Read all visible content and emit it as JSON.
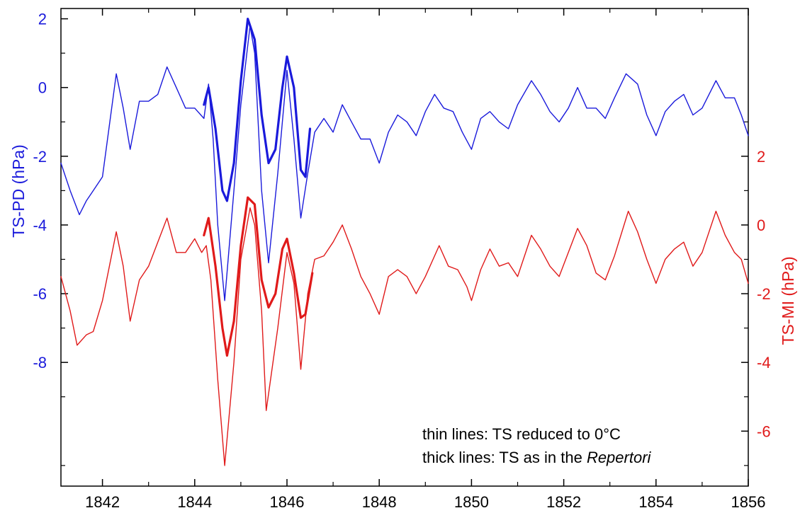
{
  "chart_data": {
    "type": "line",
    "x_axis": {
      "ticks": [
        1842,
        1844,
        1846,
        1848,
        1850,
        1852,
        1854,
        1856
      ],
      "range": [
        1841.1,
        1856
      ]
    },
    "y_left": {
      "label": "TS-PD (hPa)",
      "ticks": [
        2,
        0,
        -2,
        -4,
        -6,
        -8
      ],
      "range": [
        -11.6,
        2.3
      ],
      "color": "#1a1adb"
    },
    "y_right": {
      "label": "TS-MI (hPa)",
      "ticks": [
        2,
        0,
        -2,
        -4,
        -6
      ],
      "range": [
        -7.6,
        6.3
      ],
      "color": "#e01a1a"
    },
    "series": [
      {
        "axis": "left",
        "style": "thin",
        "color": "#1a1adb",
        "points": [
          [
            1841.1,
            -2.2
          ],
          [
            1841.3,
            -3.0
          ],
          [
            1841.5,
            -3.7
          ],
          [
            1841.65,
            -3.3
          ],
          [
            1841.8,
            -3.0
          ],
          [
            1842.0,
            -2.6
          ],
          [
            1842.1,
            -1.6
          ],
          [
            1842.3,
            0.4
          ],
          [
            1842.45,
            -0.6
          ],
          [
            1842.6,
            -1.8
          ],
          [
            1842.8,
            -0.4
          ],
          [
            1843.0,
            -0.4
          ],
          [
            1843.2,
            -0.2
          ],
          [
            1843.4,
            0.6
          ],
          [
            1843.6,
            0.0
          ],
          [
            1843.8,
            -0.6
          ],
          [
            1844.0,
            -0.6
          ],
          [
            1844.2,
            -0.9
          ],
          [
            1844.3,
            0.1
          ],
          [
            1844.4,
            -1.5
          ],
          [
            1844.5,
            -4.0
          ],
          [
            1844.65,
            -6.2
          ],
          [
            1844.85,
            -3.0
          ],
          [
            1845.0,
            -0.5
          ],
          [
            1845.2,
            1.8
          ],
          [
            1845.3,
            1.0
          ],
          [
            1845.45,
            -3.0
          ],
          [
            1845.6,
            -5.1
          ],
          [
            1845.8,
            -2.5
          ],
          [
            1846.0,
            0.5
          ],
          [
            1846.15,
            -1.5
          ],
          [
            1846.3,
            -3.8
          ],
          [
            1846.45,
            -2.5
          ],
          [
            1846.6,
            -1.3
          ],
          [
            1846.8,
            -0.9
          ],
          [
            1847.0,
            -1.3
          ],
          [
            1847.2,
            -0.5
          ],
          [
            1847.4,
            -1.0
          ],
          [
            1847.6,
            -1.5
          ],
          [
            1847.8,
            -1.5
          ],
          [
            1848.0,
            -2.2
          ],
          [
            1848.2,
            -1.3
          ],
          [
            1848.4,
            -0.8
          ],
          [
            1848.6,
            -1.0
          ],
          [
            1848.8,
            -1.4
          ],
          [
            1849.0,
            -0.7
          ],
          [
            1849.2,
            -0.2
          ],
          [
            1849.4,
            -0.6
          ],
          [
            1849.6,
            -0.7
          ],
          [
            1849.8,
            -1.3
          ],
          [
            1850.0,
            -1.8
          ],
          [
            1850.2,
            -0.9
          ],
          [
            1850.4,
            -0.7
          ],
          [
            1850.6,
            -1.0
          ],
          [
            1850.8,
            -1.2
          ],
          [
            1851.0,
            -0.5
          ],
          [
            1851.3,
            0.2
          ],
          [
            1851.5,
            -0.2
          ],
          [
            1851.7,
            -0.7
          ],
          [
            1851.9,
            -1.0
          ],
          [
            1852.1,
            -0.6
          ],
          [
            1852.3,
            0.0
          ],
          [
            1852.5,
            -0.6
          ],
          [
            1852.7,
            -0.6
          ],
          [
            1852.9,
            -0.9
          ],
          [
            1853.1,
            -0.3
          ],
          [
            1853.35,
            0.4
          ],
          [
            1853.6,
            0.1
          ],
          [
            1853.8,
            -0.8
          ],
          [
            1854.0,
            -1.4
          ],
          [
            1854.2,
            -0.7
          ],
          [
            1854.4,
            -0.4
          ],
          [
            1854.6,
            -0.2
          ],
          [
            1854.8,
            -0.8
          ],
          [
            1855.0,
            -0.6
          ],
          [
            1855.3,
            0.2
          ],
          [
            1855.5,
            -0.3
          ],
          [
            1855.7,
            -0.3
          ],
          [
            1855.85,
            -0.8
          ],
          [
            1856.0,
            -1.4
          ]
        ]
      },
      {
        "axis": "left",
        "style": "thick",
        "color": "#1a1adb",
        "points": [
          [
            1844.2,
            -0.5
          ],
          [
            1844.3,
            0.0
          ],
          [
            1844.45,
            -1.2
          ],
          [
            1844.6,
            -3.0
          ],
          [
            1844.7,
            -3.3
          ],
          [
            1844.85,
            -2.2
          ],
          [
            1845.0,
            0.2
          ],
          [
            1845.15,
            2.0
          ],
          [
            1845.3,
            1.4
          ],
          [
            1845.45,
            -0.8
          ],
          [
            1845.6,
            -2.2
          ],
          [
            1845.75,
            -1.8
          ],
          [
            1845.9,
            0.0
          ],
          [
            1846.0,
            0.9
          ],
          [
            1846.15,
            0.0
          ],
          [
            1846.3,
            -2.4
          ],
          [
            1846.4,
            -2.6
          ],
          [
            1846.5,
            -1.2
          ]
        ]
      },
      {
        "axis": "right",
        "style": "thin",
        "color": "#e01a1a",
        "points": [
          [
            1841.1,
            -1.5
          ],
          [
            1841.3,
            -2.5
          ],
          [
            1841.45,
            -3.5
          ],
          [
            1841.65,
            -3.2
          ],
          [
            1841.8,
            -3.1
          ],
          [
            1842.0,
            -2.2
          ],
          [
            1842.15,
            -1.2
          ],
          [
            1842.3,
            -0.2
          ],
          [
            1842.45,
            -1.2
          ],
          [
            1842.6,
            -2.8
          ],
          [
            1842.8,
            -1.6
          ],
          [
            1843.0,
            -1.2
          ],
          [
            1843.2,
            -0.5
          ],
          [
            1843.4,
            0.2
          ],
          [
            1843.6,
            -0.8
          ],
          [
            1843.8,
            -0.8
          ],
          [
            1844.0,
            -0.4
          ],
          [
            1844.15,
            -0.8
          ],
          [
            1844.25,
            -0.6
          ],
          [
            1844.35,
            -1.6
          ],
          [
            1844.5,
            -4.5
          ],
          [
            1844.65,
            -7.0
          ],
          [
            1844.85,
            -4.0
          ],
          [
            1845.0,
            -1.0
          ],
          [
            1845.2,
            0.5
          ],
          [
            1845.3,
            0.0
          ],
          [
            1845.45,
            -2.5
          ],
          [
            1845.55,
            -5.4
          ],
          [
            1845.8,
            -3.0
          ],
          [
            1846.0,
            -0.8
          ],
          [
            1846.15,
            -1.7
          ],
          [
            1846.3,
            -4.2
          ],
          [
            1846.45,
            -2.0
          ],
          [
            1846.6,
            -1.0
          ],
          [
            1846.8,
            -0.9
          ],
          [
            1847.0,
            -0.5
          ],
          [
            1847.2,
            0.0
          ],
          [
            1847.4,
            -0.7
          ],
          [
            1847.6,
            -1.5
          ],
          [
            1847.8,
            -2.0
          ],
          [
            1848.0,
            -2.6
          ],
          [
            1848.2,
            -1.5
          ],
          [
            1848.4,
            -1.3
          ],
          [
            1848.6,
            -1.5
          ],
          [
            1848.8,
            -2.0
          ],
          [
            1849.0,
            -1.5
          ],
          [
            1849.3,
            -0.6
          ],
          [
            1849.5,
            -1.2
          ],
          [
            1849.7,
            -1.3
          ],
          [
            1849.9,
            -1.8
          ],
          [
            1850.0,
            -2.2
          ],
          [
            1850.2,
            -1.3
          ],
          [
            1850.4,
            -0.7
          ],
          [
            1850.6,
            -1.2
          ],
          [
            1850.8,
            -1.1
          ],
          [
            1851.0,
            -1.5
          ],
          [
            1851.3,
            -0.3
          ],
          [
            1851.5,
            -0.7
          ],
          [
            1851.7,
            -1.2
          ],
          [
            1851.9,
            -1.5
          ],
          [
            1852.1,
            -0.8
          ],
          [
            1852.3,
            -0.1
          ],
          [
            1852.5,
            -0.6
          ],
          [
            1852.7,
            -1.4
          ],
          [
            1852.9,
            -1.6
          ],
          [
            1853.1,
            -0.9
          ],
          [
            1853.4,
            0.4
          ],
          [
            1853.6,
            -0.2
          ],
          [
            1853.8,
            -1.0
          ],
          [
            1854.0,
            -1.7
          ],
          [
            1854.2,
            -1.0
          ],
          [
            1854.4,
            -0.7
          ],
          [
            1854.6,
            -0.5
          ],
          [
            1854.8,
            -1.2
          ],
          [
            1855.0,
            -0.8
          ],
          [
            1855.3,
            0.4
          ],
          [
            1855.5,
            -0.3
          ],
          [
            1855.7,
            -0.8
          ],
          [
            1855.85,
            -1.0
          ],
          [
            1856.0,
            -1.7
          ]
        ]
      },
      {
        "axis": "right",
        "style": "thick",
        "color": "#e01a1a",
        "points": [
          [
            1844.2,
            -0.3
          ],
          [
            1844.3,
            0.2
          ],
          [
            1844.45,
            -1.2
          ],
          [
            1844.6,
            -3.0
          ],
          [
            1844.7,
            -3.8
          ],
          [
            1844.85,
            -2.8
          ],
          [
            1845.0,
            -0.6
          ],
          [
            1845.15,
            0.8
          ],
          [
            1845.3,
            0.6
          ],
          [
            1845.45,
            -1.6
          ],
          [
            1845.6,
            -2.4
          ],
          [
            1845.75,
            -2.0
          ],
          [
            1845.9,
            -0.7
          ],
          [
            1846.0,
            -0.4
          ],
          [
            1846.15,
            -1.4
          ],
          [
            1846.3,
            -2.7
          ],
          [
            1846.4,
            -2.6
          ],
          [
            1846.55,
            -1.4
          ]
        ]
      }
    ],
    "annotations": [
      {
        "parts": [
          "thin lines: TS reduced to 0°C"
        ]
      },
      {
        "parts": [
          "thick lines: TS as in the ",
          "Repertori"
        ]
      }
    ]
  }
}
